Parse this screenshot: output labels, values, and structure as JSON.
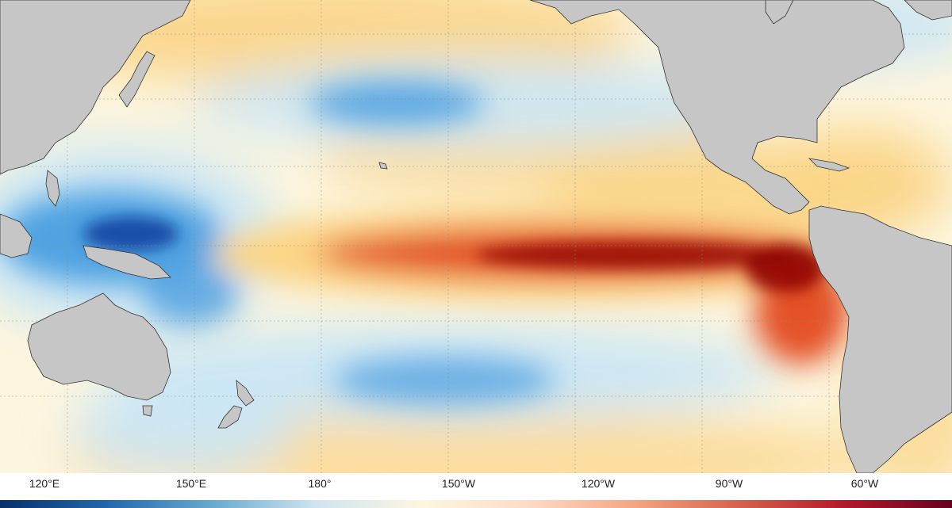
{
  "map": {
    "projection": "equirectangular, Pacific-centred",
    "variable": "sea surface temperature anomaly",
    "x_tick_labels": [
      "120°E",
      "150°E",
      "180°",
      "150°W",
      "120°W",
      "90°W",
      "60°W"
    ],
    "x_tick_longitudes_deg_east": [
      120,
      150,
      180,
      210,
      240,
      270,
      300
    ],
    "latitude_gridlines_deg": [
      -30,
      -15,
      0,
      15,
      30,
      45
    ],
    "gridlines": "dotted",
    "features": [
      "El Niño warm tongue along the equatorial Pacific",
      "cold anomaly west Pacific warm pool",
      "cold anomaly bands north and south of equator"
    ],
    "colors": {
      "land": "#c6c6c6",
      "coast": "#333333",
      "strong_warm": "#8b0000",
      "warm": "#e34a1f",
      "mild_warm": "#fbd485",
      "neutral": "#fdf6df",
      "mild_cold": "#c9e6f6",
      "cold": "#4a9ee0",
      "strong_cold": "#0b3f9e"
    }
  },
  "colorbar": {
    "orientation": "horizontal",
    "colors": [
      "#08306b",
      "#2166ac",
      "#67a9cf",
      "#d1e5f0",
      "#fdf6df",
      "#fddbc7",
      "#f4a582",
      "#d6604d",
      "#b2182b",
      "#67001f"
    ]
  }
}
